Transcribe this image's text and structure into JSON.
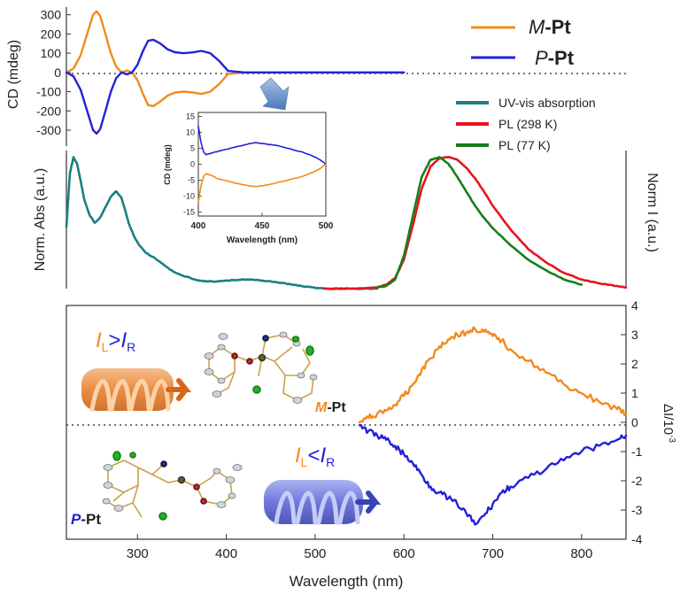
{
  "chart_data": [
    {
      "id": "cd",
      "type": "line",
      "ylabel": "CD (mdeg)",
      "xlim": [
        220,
        850
      ],
      "ylim": [
        -360,
        340
      ],
      "yticks": [
        300,
        200,
        100,
        0,
        -100,
        -200,
        -300
      ],
      "legend": "top-right",
      "series": [
        {
          "name": "M-Pt",
          "label_prefix": "M",
          "label_suffix": "-Pt",
          "color": "#f28a1e",
          "x": [
            220,
            228,
            236,
            244,
            250,
            254,
            258,
            264,
            270,
            276,
            282,
            288,
            294,
            300,
            306,
            312,
            318,
            326,
            334,
            342,
            352,
            362,
            372,
            382,
            392,
            402,
            420,
            460,
            500,
            560,
            600
          ],
          "y": [
            0,
            20,
            90,
            210,
            300,
            318,
            295,
            200,
            100,
            30,
            0,
            10,
            0,
            -40,
            -110,
            -170,
            -175,
            -150,
            -120,
            -105,
            -100,
            -104,
            -112,
            -100,
            -60,
            -8,
            0,
            0,
            0,
            0,
            0
          ]
        },
        {
          "name": "P-Pt",
          "label_prefix": "P",
          "label_suffix": "-Pt",
          "color": "#2222d8",
          "x": [
            220,
            228,
            236,
            244,
            250,
            254,
            258,
            264,
            270,
            276,
            282,
            288,
            294,
            300,
            306,
            312,
            318,
            326,
            334,
            342,
            352,
            362,
            372,
            382,
            392,
            402,
            420,
            460,
            500,
            560,
            600
          ],
          "y": [
            0,
            -20,
            -90,
            -210,
            -300,
            -318,
            -295,
            -200,
            -100,
            -30,
            0,
            -10,
            0,
            40,
            110,
            165,
            170,
            150,
            120,
            105,
            100,
            104,
            112,
            100,
            60,
            8,
            0,
            0,
            0,
            0,
            0
          ]
        }
      ]
    },
    {
      "id": "abs_pl",
      "type": "line",
      "ylabel_left": "Norm. Abs (a.u.)",
      "ylabel_right": "Norm I (a.u.)",
      "xlim": [
        220,
        850
      ],
      "ylim": [
        0,
        1.05
      ],
      "legend": "top-right",
      "series": [
        {
          "name": "UV-vis absorption",
          "color": "#1a8080",
          "x": [
            220,
            224,
            228,
            232,
            236,
            240,
            246,
            252,
            258,
            264,
            270,
            276,
            282,
            286,
            290,
            296,
            302,
            310,
            320,
            330,
            340,
            350,
            360,
            370,
            380,
            390,
            400,
            410,
            420,
            430,
            440,
            450,
            460,
            470,
            480,
            490,
            500,
            510,
            520,
            540,
            560,
            570
          ],
          "y": [
            0.47,
            0.88,
            1.0,
            0.95,
            0.82,
            0.68,
            0.56,
            0.5,
            0.54,
            0.62,
            0.7,
            0.74,
            0.69,
            0.6,
            0.5,
            0.4,
            0.33,
            0.27,
            0.23,
            0.18,
            0.13,
            0.1,
            0.08,
            0.06,
            0.055,
            0.055,
            0.06,
            0.065,
            0.07,
            0.068,
            0.062,
            0.055,
            0.045,
            0.035,
            0.025,
            0.015,
            0.006,
            0.002,
            0.0,
            0.0,
            0.0,
            0.0
          ]
        },
        {
          "name": "PL (298 K)",
          "color": "#e8141c",
          "x": [
            510,
            540,
            570,
            580,
            590,
            600,
            610,
            620,
            630,
            640,
            650,
            660,
            670,
            680,
            690,
            700,
            720,
            740,
            760,
            780,
            800,
            820,
            840,
            850
          ],
          "y": [
            0.0,
            0.0,
            0.01,
            0.03,
            0.08,
            0.22,
            0.48,
            0.76,
            0.93,
            0.99,
            1.0,
            0.98,
            0.92,
            0.84,
            0.74,
            0.63,
            0.45,
            0.3,
            0.2,
            0.12,
            0.07,
            0.04,
            0.02,
            0.01
          ]
        },
        {
          "name": "PL (77 K)",
          "color": "#1a7d1a",
          "x": [
            570,
            580,
            590,
            600,
            610,
            620,
            630,
            640,
            650,
            660,
            670,
            680,
            690,
            700,
            720,
            740,
            760,
            780,
            800
          ],
          "y": [
            0.01,
            0.02,
            0.07,
            0.25,
            0.55,
            0.85,
            0.98,
            1.0,
            0.95,
            0.85,
            0.74,
            0.63,
            0.54,
            0.46,
            0.33,
            0.22,
            0.14,
            0.07,
            0.03
          ]
        }
      ]
    },
    {
      "id": "inset",
      "type": "line",
      "ylabel": "CD (mdeg)",
      "xlabel": "Wavelength (nm)",
      "xlim": [
        400,
        500
      ],
      "ylim": [
        -16,
        16
      ],
      "xticks": [
        400,
        450,
        500
      ],
      "yticks": [
        15,
        10,
        5,
        0,
        -5,
        -10,
        -15
      ],
      "series": [
        {
          "name": "P-Pt inset",
          "color": "#2222d8",
          "x": [
            400,
            402,
            404,
            406,
            410,
            415,
            420,
            430,
            440,
            445,
            450,
            460,
            470,
            480,
            490,
            495,
            500
          ],
          "y": [
            12,
            7,
            4,
            3,
            3.5,
            4,
            4.5,
            5.5,
            6.5,
            6.8,
            6.5,
            6,
            5,
            4,
            2.5,
            1.5,
            0
          ]
        },
        {
          "name": "M-Pt inset",
          "color": "#f28a1e",
          "x": [
            400,
            402,
            404,
            406,
            410,
            415,
            420,
            430,
            440,
            445,
            450,
            460,
            470,
            480,
            490,
            495,
            500
          ],
          "y": [
            -12,
            -7,
            -4,
            -3,
            -3.5,
            -4.5,
            -5,
            -6,
            -6.8,
            -7,
            -6.8,
            -6,
            -5,
            -4,
            -2.5,
            -1.5,
            0
          ]
        }
      ]
    },
    {
      "id": "cpl",
      "type": "line",
      "ylabel_right_main": "ΔI/10",
      "ylabel_right_sup": "-3",
      "xlabel": "Wavelength (nm)",
      "xlim": [
        220,
        850
      ],
      "ylim": [
        -4,
        4
      ],
      "xticks": [
        300,
        400,
        500,
        600,
        700,
        800
      ],
      "yticks": [
        4,
        3,
        2,
        1,
        0,
        -1,
        -2,
        -3,
        -4
      ],
      "series": [
        {
          "name": "M-Pt CPL",
          "color": "#f28a1e",
          "x": [
            550,
            560,
            570,
            580,
            590,
            600,
            610,
            620,
            630,
            640,
            650,
            660,
            670,
            680,
            690,
            700,
            710,
            720,
            740,
            760,
            780,
            800,
            820,
            840,
            850
          ],
          "y": [
            0,
            0.15,
            0.3,
            0.4,
            0.6,
            0.9,
            1.3,
            1.8,
            2.2,
            2.6,
            2.85,
            3.0,
            3.05,
            3.2,
            3.1,
            2.95,
            2.8,
            2.5,
            2.1,
            1.7,
            1.3,
            1.0,
            0.7,
            0.45,
            0.3
          ]
        },
        {
          "name": "P-Pt CPL",
          "color": "#2222d8",
          "x": [
            550,
            560,
            570,
            580,
            590,
            600,
            610,
            620,
            630,
            640,
            650,
            660,
            670,
            680,
            690,
            700,
            710,
            720,
            740,
            760,
            780,
            800,
            820,
            840,
            850
          ],
          "y": [
            -0.1,
            -0.3,
            -0.45,
            -0.6,
            -0.8,
            -1.1,
            -1.4,
            -1.8,
            -2.2,
            -2.4,
            -2.6,
            -2.8,
            -3.1,
            -3.5,
            -3.2,
            -2.8,
            -2.4,
            -2.2,
            -1.9,
            -1.6,
            -1.3,
            -1.0,
            -0.8,
            -0.6,
            -0.45
          ]
        }
      ]
    }
  ],
  "annotations": {
    "il_gt_ir": {
      "i1": "I",
      "sub1": "L",
      "rel": ">",
      "i2": "I",
      "sub2": "R"
    },
    "il_lt_ir": {
      "i1": "I",
      "sub1": "L",
      "rel": "<",
      "i2": "I",
      "sub2": "R"
    },
    "m_label": {
      "prefix": "M",
      "suffix": "-Pt"
    },
    "p_label": {
      "prefix": "P",
      "suffix": "-Pt"
    }
  },
  "colors": {
    "orange": "#f28a1e",
    "blue": "#2222d8",
    "teal": "#1a8080",
    "red": "#e8141c",
    "green": "#1a7d1a"
  }
}
